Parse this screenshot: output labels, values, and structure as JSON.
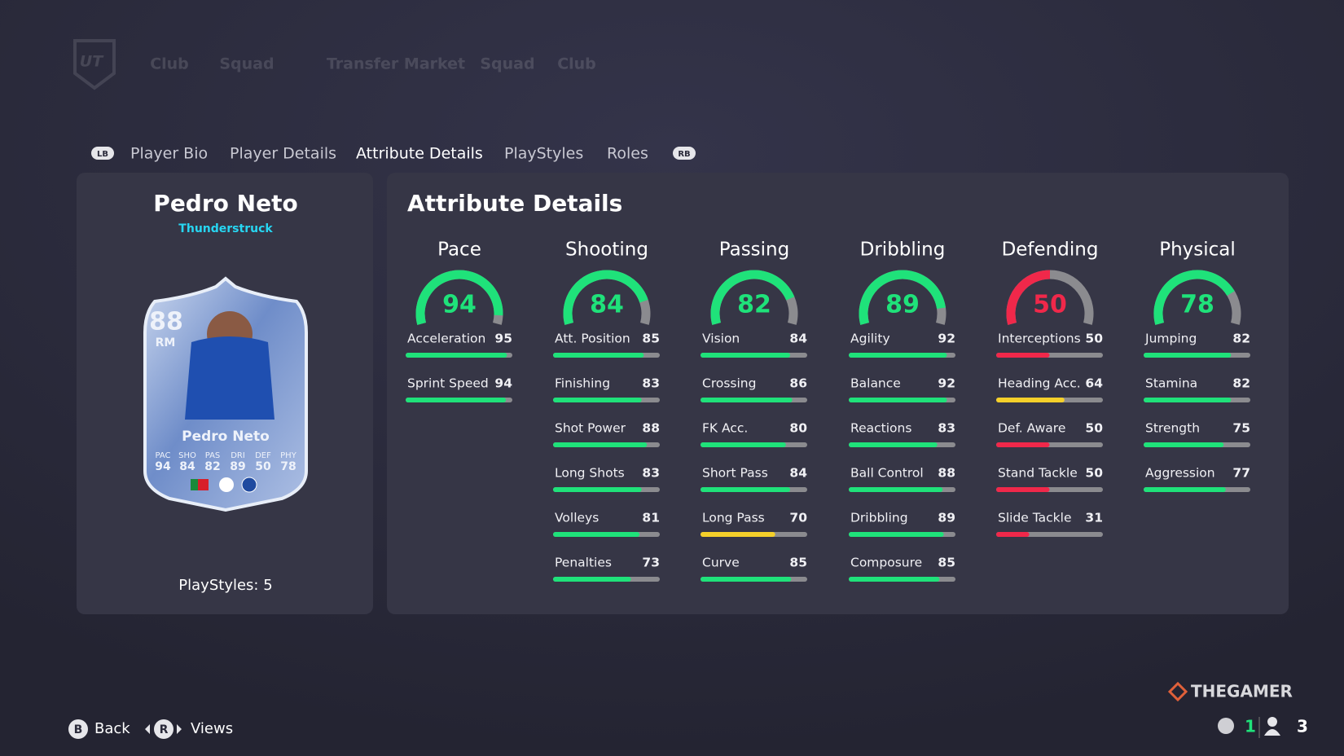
{
  "top_nav": {
    "logo": "UT",
    "items": [
      "Club",
      "Squad",
      "Transfer Market",
      "Squad",
      "Club"
    ]
  },
  "tabs": {
    "left_button": "LB",
    "items": [
      "Player Bio",
      "Player Details",
      "Attribute Details",
      "PlayStyles",
      "Roles"
    ],
    "active": 2,
    "right_button": "RB"
  },
  "player": {
    "name": "Pedro Neto",
    "card_type": "Thunderstruck",
    "playstyles": {
      "label": "PlayStyles:",
      "value": 5
    },
    "card": {
      "rating": 88,
      "position": "RM",
      "name": "Pedro Neto",
      "stats": [
        {
          "label": "PAC",
          "value": 94
        },
        {
          "label": "SHO",
          "value": 84
        },
        {
          "label": "PAS",
          "value": 82
        },
        {
          "label": "DRI",
          "value": 89
        },
        {
          "label": "DEF",
          "value": 50
        },
        {
          "label": "PHY",
          "value": 78
        }
      ]
    }
  },
  "attributes": {
    "title": "Attribute Details",
    "max": 100,
    "track_color": "#8b8b8f",
    "groups": [
      {
        "name": "Pace",
        "value": 94,
        "color": "#1fe27a",
        "stats": [
          {
            "name": "Acceleration",
            "value": 95,
            "color": "#1fe27a"
          },
          {
            "name": "Sprint Speed",
            "value": 94,
            "color": "#1fe27a"
          }
        ]
      },
      {
        "name": "Shooting",
        "value": 84,
        "color": "#1fe27a",
        "stats": [
          {
            "name": "Att. Position",
            "value": 85,
            "color": "#1fe27a"
          },
          {
            "name": "Finishing",
            "value": 83,
            "color": "#1fe27a"
          },
          {
            "name": "Shot Power",
            "value": 88,
            "color": "#1fe27a"
          },
          {
            "name": "Long Shots",
            "value": 83,
            "color": "#1fe27a"
          },
          {
            "name": "Volleys",
            "value": 81,
            "color": "#1fe27a"
          },
          {
            "name": "Penalties",
            "value": 73,
            "color": "#1fe27a"
          }
        ]
      },
      {
        "name": "Passing",
        "value": 82,
        "color": "#1fe27a",
        "stats": [
          {
            "name": "Vision",
            "value": 84,
            "color": "#1fe27a"
          },
          {
            "name": "Crossing",
            "value": 86,
            "color": "#1fe27a"
          },
          {
            "name": "FK Acc.",
            "value": 80,
            "color": "#1fe27a"
          },
          {
            "name": "Short Pass",
            "value": 84,
            "color": "#1fe27a"
          },
          {
            "name": "Long Pass",
            "value": 70,
            "color": "#f5d02a"
          },
          {
            "name": "Curve",
            "value": 85,
            "color": "#1fe27a"
          }
        ]
      },
      {
        "name": "Dribbling",
        "value": 89,
        "color": "#1fe27a",
        "stats": [
          {
            "name": "Agility",
            "value": 92,
            "color": "#1fe27a"
          },
          {
            "name": "Balance",
            "value": 92,
            "color": "#1fe27a"
          },
          {
            "name": "Reactions",
            "value": 83,
            "color": "#1fe27a"
          },
          {
            "name": "Ball Control",
            "value": 88,
            "color": "#1fe27a"
          },
          {
            "name": "Dribbling",
            "value": 89,
            "color": "#1fe27a"
          },
          {
            "name": "Composure",
            "value": 85,
            "color": "#1fe27a"
          }
        ]
      },
      {
        "name": "Defending",
        "value": 50,
        "color": "#f0284a",
        "stats": [
          {
            "name": "Interceptions",
            "value": 50,
            "color": "#f0284a"
          },
          {
            "name": "Heading Acc.",
            "value": 64,
            "color": "#f5d02a"
          },
          {
            "name": "Def. Aware",
            "value": 50,
            "color": "#f0284a"
          },
          {
            "name": "Stand Tackle",
            "value": 50,
            "color": "#f0284a"
          },
          {
            "name": "Slide Tackle",
            "value": 31,
            "color": "#f0284a"
          }
        ]
      },
      {
        "name": "Physical",
        "value": 78,
        "color": "#1fe27a",
        "stats": [
          {
            "name": "Jumping",
            "value": 82,
            "color": "#1fe27a"
          },
          {
            "name": "Stamina",
            "value": 82,
            "color": "#1fe27a"
          },
          {
            "name": "Strength",
            "value": 75,
            "color": "#1fe27a"
          },
          {
            "name": "Aggression",
            "value": 77,
            "color": "#1fe27a"
          }
        ]
      }
    ]
  },
  "footer": {
    "back": {
      "button": "B",
      "label": "Back"
    },
    "views": {
      "button": "R",
      "label": "Views"
    },
    "brand": "THEGAMER",
    "counts": [
      1,
      3
    ]
  }
}
